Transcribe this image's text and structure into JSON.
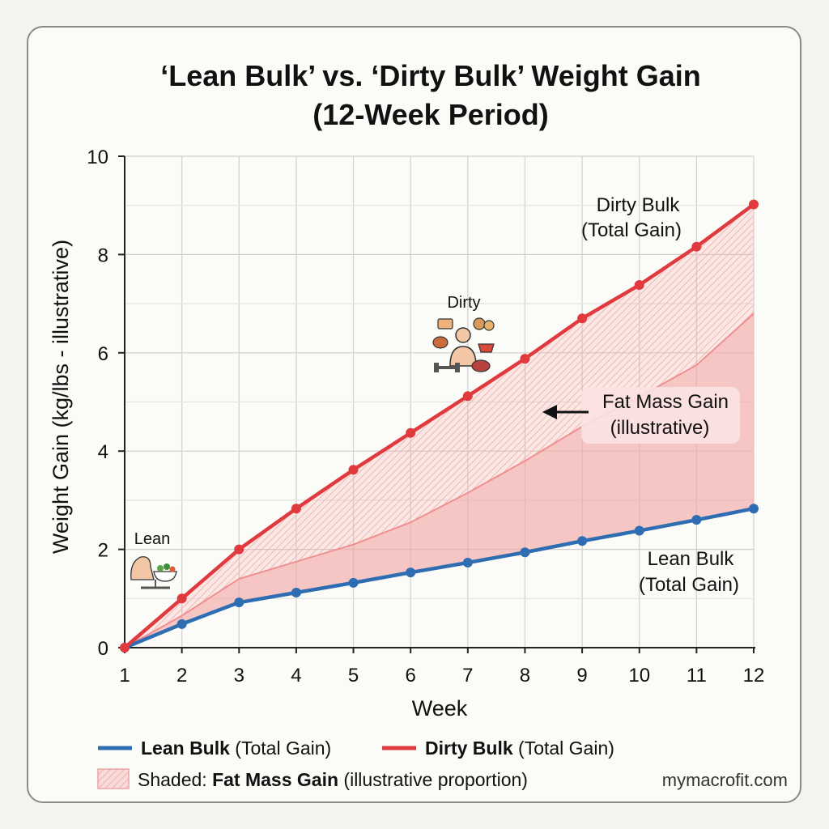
{
  "chart_data": {
    "type": "line",
    "title_line1": "‘Lean Bulk’ vs. ‘Dirty Bulk’ Weight Gain",
    "title_line2": "(12-Week Period)",
    "xlabel": "Week",
    "ylabel": "Weight Gain (kg/lbs - illustrative)",
    "x": [
      1,
      2,
      3,
      4,
      5,
      6,
      7,
      8,
      9,
      10,
      11,
      12
    ],
    "xlim": [
      1,
      12
    ],
    "ylim": [
      0,
      10
    ],
    "y_ticks": [
      0,
      2,
      4,
      6,
      8,
      10
    ],
    "grid": true,
    "series": [
      {
        "name": "Lean Bulk",
        "name_suffix": " (Total Gain)",
        "color": "#2f6db3",
        "values": [
          0,
          0.48,
          0.92,
          1.12,
          1.32,
          1.53,
          1.73,
          1.94,
          2.17,
          2.38,
          2.6,
          2.83
        ]
      },
      {
        "name": "Dirty Bulk",
        "name_suffix": " (Total Gain)",
        "color": "#e0393e",
        "values": [
          0,
          1.0,
          2.0,
          2.83,
          3.62,
          4.37,
          5.12,
          5.88,
          6.7,
          7.38,
          8.16,
          9.02
        ]
      }
    ],
    "shaded_inner_line": [
      0,
      0.65,
      1.4,
      1.75,
      2.1,
      2.55,
      3.15,
      3.8,
      4.5,
      5.1,
      5.75,
      6.8
    ],
    "shade_color": "#f4a3a3",
    "annotations": {
      "dirty_total_line1": "Dirty Bulk",
      "dirty_total_line2": "(Total Gain)",
      "lean_total_line1": "Lean Bulk",
      "lean_total_line2": "(Total Gain)",
      "fat_mass_line1": "Fat Mass Gain",
      "fat_mass_line2": "(illustrative)",
      "dirty_icon_label": "Dirty",
      "lean_icon_label": "Lean"
    },
    "legend": {
      "position": "bottom",
      "lean_bold": "Lean Bulk",
      "lean_rest": " (Total Gain)",
      "dirty_bold": "Dirty Bulk",
      "dirty_rest": " (Total Gain)",
      "shaded_prefix": "Shaded: ",
      "shaded_bold": "Fat Mass Gain",
      "shaded_rest": " (illustrative proportion)"
    },
    "watermark": "mymacrofit.com"
  }
}
